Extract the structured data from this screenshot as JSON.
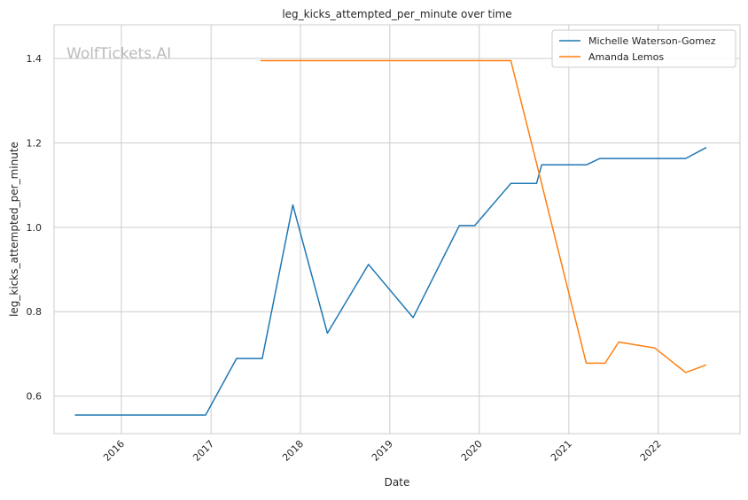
{
  "chart_data": {
    "type": "line",
    "title": "leg_kicks_attempted_per_minute over time",
    "xlabel": "Date",
    "ylabel": "leg_kicks_attempted_per_minute",
    "watermark": "WolfTickets.AI",
    "x_tick_labels": [
      "2016",
      "2017",
      "2018",
      "2019",
      "2020",
      "2021",
      "2022"
    ],
    "y_tick_labels": [
      "0.6",
      "0.8",
      "1.0",
      "1.2",
      "1.4"
    ],
    "y_ticks": [
      0.6,
      0.8,
      1.0,
      1.2,
      1.4
    ],
    "xlim": [
      "2015-04-01",
      "2022-12-01"
    ],
    "ylim": [
      0.511,
      1.48
    ],
    "grid": true,
    "legend_position": "top-right",
    "series": [
      {
        "name": "Michelle Waterson-Gomez",
        "color": "#1f77b4",
        "x": [
          "2015-06-25",
          "2016-12-10",
          "2017-04-15",
          "2017-07-29",
          "2017-12-01",
          "2018-04-21",
          "2018-10-06",
          "2019-04-06",
          "2019-10-12",
          "2019-12-14",
          "2020-05-09",
          "2020-08-22",
          "2020-09-12",
          "2021-03-13",
          "2021-05-08",
          "2022-04-23",
          "2022-07-16"
        ],
        "values": [
          0.555,
          0.555,
          0.689,
          0.689,
          1.053,
          0.749,
          0.912,
          0.786,
          1.004,
          1.004,
          1.104,
          1.104,
          1.148,
          1.148,
          1.163,
          1.163,
          1.189
        ]
      },
      {
        "name": "Amanda Lemos",
        "color": "#ff7f0e",
        "x": [
          "2017-07-22",
          "2020-05-09",
          "2020-09-05",
          "2021-03-13",
          "2021-05-29",
          "2021-07-24",
          "2021-12-18",
          "2022-04-23",
          "2022-07-16"
        ],
        "values": [
          1.395,
          1.395,
          1.12,
          0.678,
          0.678,
          0.728,
          0.714,
          0.656,
          0.674
        ]
      }
    ]
  }
}
